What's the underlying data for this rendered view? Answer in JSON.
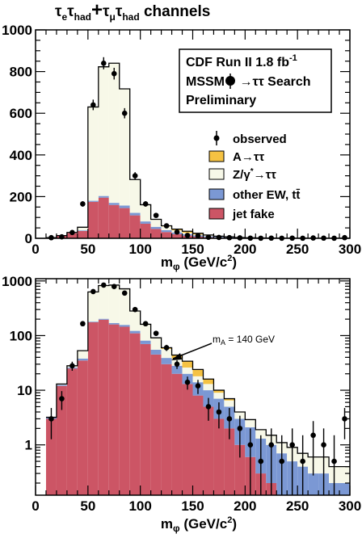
{
  "figure_title_parts": {
    "tau1": "τ",
    "sub1": "e",
    "tau2": "τ",
    "sub2": "had",
    "plus": "+",
    "tau3": "τ",
    "sub3": "μ",
    "tau4": "τ",
    "sub4": "had",
    "rest": " channels"
  },
  "info_box": {
    "line1": "CDF Run II  1.8 fb",
    "line1_sup": "-1",
    "line2": "MSSM ",
    "line2_b": "→ττ Search",
    "line3": "Preliminary"
  },
  "legend": [
    {
      "label": "observed",
      "key": "observed"
    },
    {
      "label": "A→ττ",
      "key": "signal",
      "color": "#f5c242"
    },
    {
      "label": "Z/γ*→ττ",
      "label_parts": [
        "Z/γ",
        "*",
        "→ττ"
      ],
      "key": "ztt",
      "color": "#f7f8e8"
    },
    {
      "label": "other EW, tt̄",
      "label_parts": [
        "other EW, t",
        "t̄"
      ],
      "key": "ew",
      "color": "#7b98d4"
    },
    {
      "label": "jet fake",
      "key": "jetfake",
      "color": "#cc5565"
    }
  ],
  "annotation": {
    "text": "m",
    "sub": "A",
    "rest": " = 140 GeV"
  },
  "chart_data": [
    {
      "type": "bar",
      "stacked": true,
      "scale": "linear",
      "xlabel": "m",
      "xlabel_sub": "φ",
      "xlabel_units": "  (GeV/c",
      "xlabel_sup": "2",
      "xlabel_close": ")",
      "xlim": [
        0,
        300
      ],
      "ylim": [
        0,
        1000
      ],
      "xticks": [
        "0",
        "50",
        "100",
        "150",
        "200",
        "250",
        "300"
      ],
      "yticks": [
        "0",
        "200",
        "400",
        "600",
        "800",
        "1000"
      ],
      "bin_width": 10,
      "bin_edges": [
        10,
        20,
        30,
        40,
        50,
        60,
        70,
        80,
        90,
        100,
        110,
        120,
        130,
        140,
        150,
        160,
        170,
        180,
        190,
        200,
        210,
        220,
        230,
        240,
        250,
        260,
        270,
        280,
        290
      ],
      "series": [
        {
          "name": "jet fake",
          "values": [
            3,
            12,
            25,
            35,
            175,
            195,
            160,
            145,
            110,
            70,
            45,
            30,
            20,
            13,
            8,
            5,
            3,
            2,
            1,
            0.6,
            0.3,
            0.2,
            0.1,
            0,
            0,
            0,
            0,
            0,
            0
          ]
        },
        {
          "name": "other EW, tt̄",
          "values": [
            0.2,
            0.5,
            1,
            3,
            5,
            8,
            10,
            12,
            12,
            11,
            10,
            9,
            8,
            7,
            6,
            5,
            4,
            3,
            2,
            1.5,
            1,
            0.8,
            0.6,
            0.5,
            0.4,
            0.3,
            0.3,
            0.2,
            0.2
          ]
        },
        {
          "name": "Z/γ*→ττ",
          "values": [
            0,
            0.5,
            2,
            15,
            450,
            620,
            670,
            560,
            160,
            80,
            35,
            18,
            10,
            6,
            4,
            3,
            2,
            1.5,
            1,
            0.8,
            0.6,
            0.5,
            0.4,
            0.4,
            0.3,
            0.3,
            0.3,
            0.2,
            0.2
          ]
        },
        {
          "name": "A→ττ",
          "values": [
            0,
            0,
            0,
            0,
            0,
            0,
            0,
            0,
            0,
            0,
            1,
            3,
            6,
            8,
            6,
            3,
            1,
            0.5,
            0,
            0,
            0,
            0,
            0,
            0,
            0,
            0,
            0,
            0,
            0
          ]
        }
      ],
      "observed": {
        "x": [
          15,
          25,
          35,
          45,
          55,
          65,
          75,
          85,
          95,
          105,
          115,
          125,
          135,
          145,
          155,
          165,
          175,
          185,
          195,
          205,
          215,
          225,
          235,
          245,
          255,
          265,
          275,
          285,
          295
        ],
        "y": [
          3,
          7,
          28,
          165,
          640,
          840,
          790,
          600,
          300,
          165,
          110,
          60,
          30,
          14,
          12,
          5,
          4,
          3,
          2,
          1,
          0.5,
          1,
          0.5,
          1,
          0.5,
          1.5,
          1,
          0.5,
          3
        ]
      }
    },
    {
      "type": "bar",
      "stacked": true,
      "scale": "log",
      "xlabel": "m",
      "xlabel_sub": "φ",
      "xlabel_units": "  (GeV/c",
      "xlabel_sup": "2",
      "xlabel_close": ")",
      "xlim": [
        0,
        300
      ],
      "ylim": [
        0.12,
        1100
      ],
      "xticks": [
        "0",
        "50",
        "100",
        "150",
        "200",
        "250",
        "300"
      ],
      "yticks": [
        "1",
        "10",
        "100",
        "1000"
      ],
      "uses_same_data_as": "panel 1"
    }
  ]
}
